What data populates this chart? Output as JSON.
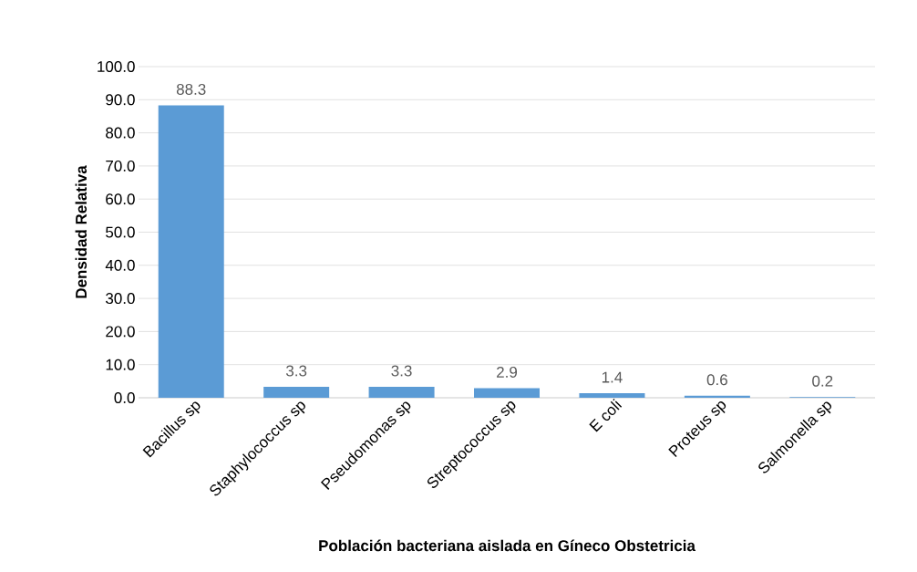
{
  "chart_data": {
    "type": "bar",
    "xlabel": "Población bacteriana aislada en Gíneco Obstetricia",
    "ylabel": "Densidad Relativa",
    "categories": [
      "Bacillus sp",
      "Staphylococcus sp",
      "Pseudomonas sp",
      "Streptococcus sp",
      "E coli",
      "Proteus sp",
      "Salmonella sp"
    ],
    "values": [
      88.3,
      3.3,
      3.3,
      2.9,
      1.4,
      0.6,
      0.2
    ],
    "color": "#5b9bd5",
    "ylim": [
      0,
      100
    ],
    "yticks": [
      {
        "value": 0,
        "label": "0.0"
      },
      {
        "value": 10,
        "label": "10.0"
      },
      {
        "value": 20,
        "label": "20.0"
      },
      {
        "value": 30,
        "label": "30.0"
      },
      {
        "value": 40,
        "label": "40.0"
      },
      {
        "value": 50,
        "label": "50.0"
      },
      {
        "value": 60,
        "label": "60.0"
      },
      {
        "value": 70,
        "label": "70.0"
      },
      {
        "value": 80,
        "label": "80.0"
      },
      {
        "value": 90,
        "label": "90.0"
      },
      {
        "value": 100,
        "label": "100.0"
      }
    ],
    "grid": "y",
    "data_labels": true
  }
}
